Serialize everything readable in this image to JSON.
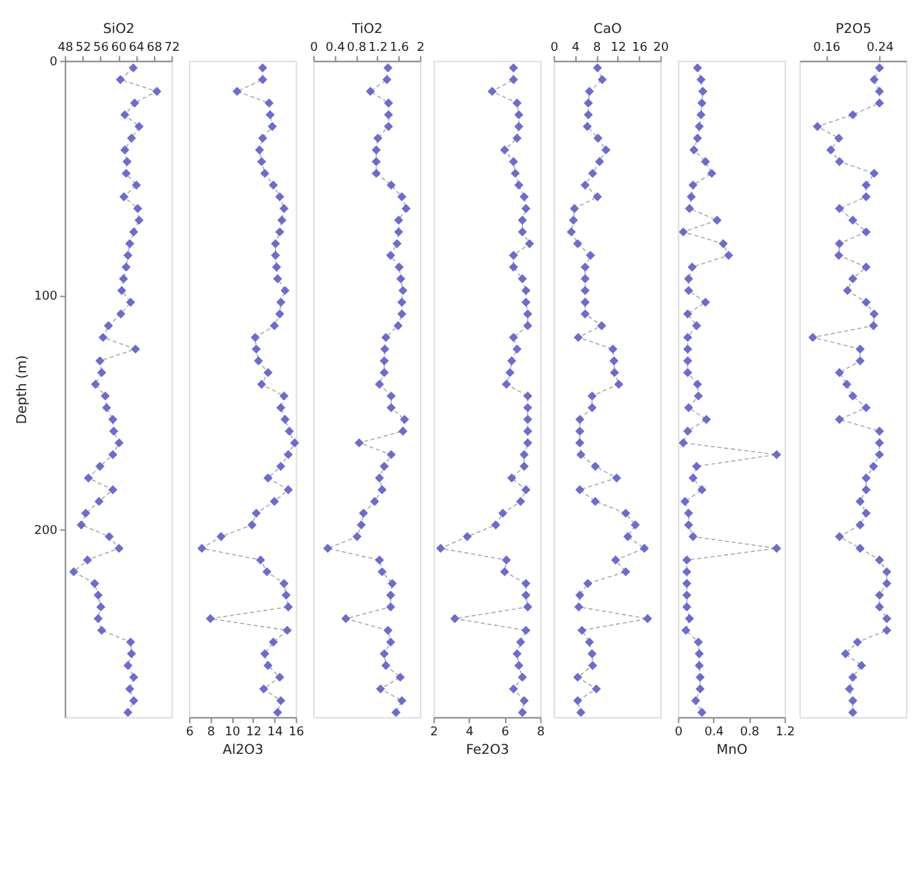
{
  "chart_data": [
    {
      "type": "line",
      "xlabel": "SiO2",
      "ylabel": "Depth (m)",
      "xlim": [
        48,
        72
      ],
      "xticks": [
        48,
        52,
        56,
        60,
        64,
        68,
        72
      ],
      "ylim": [
        280,
        0
      ],
      "yticks": [
        0,
        100,
        200
      ],
      "marker": "diamond",
      "line_style": "dashed",
      "series": [
        {
          "color": "#6b6bd1",
          "x": [
            63.4,
            60.5,
            68.7,
            63.7,
            61.5,
            64.7,
            63.0,
            61.5,
            62.0,
            61.8,
            64.1,
            61.3,
            64.4,
            64.7,
            63.5,
            62.6,
            62.2,
            61.8,
            61.2,
            60.8,
            62.8,
            60.6,
            57.8,
            56.6,
            63.9,
            55.9,
            56.3,
            54.9,
            57.1,
            57.4,
            58.8,
            59.0,
            60.2,
            58.8,
            55.9,
            53.3,
            58.8,
            55.7,
            52.7,
            51.7,
            58.0,
            60.2,
            53.1,
            50.0,
            54.7,
            55.5,
            56.1,
            55.5,
            56.3,
            62.8,
            63.0,
            62.2,
            63.5,
            62.6,
            63.5,
            62.2
          ],
          "values": [
            3,
            8,
            13,
            18,
            23,
            28,
            33,
            38,
            43,
            48,
            53,
            58,
            63,
            68,
            73,
            78,
            83,
            88,
            93,
            98,
            103,
            108,
            113,
            118,
            123,
            128,
            133,
            138,
            143,
            148,
            153,
            158,
            163,
            168,
            173,
            178,
            183,
            188,
            193,
            198,
            203,
            208,
            213,
            218,
            223,
            228,
            233,
            238,
            243,
            248,
            253,
            258,
            263,
            268,
            273,
            278
          ]
        }
      ]
    },
    {
      "type": "line",
      "xlabel": "Al2O3",
      "xlim": [
        6,
        16
      ],
      "xticks": [
        6,
        8,
        10,
        12,
        14,
        16
      ],
      "ylim": [
        280,
        0
      ],
      "tick_labels": "x",
      "marker": "diamond",
      "line_style": "dashed",
      "series": [
        {
          "color": "#6b6bd1",
          "x": [
            12.9,
            12.9,
            10.5,
            13.5,
            13.6,
            13.8,
            12.9,
            12.6,
            12.8,
            13.1,
            13.9,
            14.5,
            14.9,
            14.7,
            14.5,
            14.1,
            14.1,
            14.2,
            14.3,
            15.0,
            14.6,
            14.5,
            14.0,
            12.2,
            12.3,
            12.5,
            13.4,
            12.8,
            14.9,
            14.6,
            15.0,
            15.4,
            15.9,
            15.3,
            14.6,
            13.4,
            15.3,
            14.0,
            12.3,
            11.9,
            9.0,
            7.2,
            12.7,
            13.3,
            14.9,
            15.1,
            15.3,
            8.0,
            15.2,
            13.9,
            13.1,
            13.4,
            14.5,
            13.0,
            14.6,
            14.3
          ],
          "values": [
            3,
            8,
            13,
            18,
            23,
            28,
            33,
            38,
            43,
            48,
            53,
            58,
            63,
            68,
            73,
            78,
            83,
            88,
            93,
            98,
            103,
            108,
            113,
            118,
            123,
            128,
            133,
            138,
            143,
            148,
            153,
            158,
            163,
            168,
            173,
            178,
            183,
            188,
            193,
            198,
            203,
            208,
            213,
            218,
            223,
            228,
            233,
            238,
            243,
            248,
            253,
            258,
            263,
            268,
            273,
            278
          ]
        }
      ]
    },
    {
      "type": "line",
      "xlabel": "TiO2",
      "xlim": [
        0,
        2
      ],
      "xticks": [
        0,
        0.4,
        0.8,
        1.2,
        1.6,
        2
      ],
      "ylim": [
        280,
        0
      ],
      "tick_labels": "x",
      "marker": "diamond",
      "line_style": "dashed",
      "series": [
        {
          "color": "#6b6bd1",
          "x": [
            1.4,
            1.38,
            1.07,
            1.41,
            1.41,
            1.41,
            1.21,
            1.18,
            1.18,
            1.18,
            1.46,
            1.66,
            1.74,
            1.6,
            1.6,
            1.57,
            1.45,
            1.61,
            1.64,
            1.68,
            1.66,
            1.66,
            1.59,
            1.36,
            1.34,
            1.33,
            1.33,
            1.24,
            1.46,
            1.46,
            1.71,
            1.68,
            0.86,
            1.46,
            1.33,
            1.24,
            1.29,
            1.15,
            0.94,
            0.9,
            0.82,
            0.27,
            1.24,
            1.29,
            1.48,
            1.45,
            1.45,
            0.61,
            1.4,
            1.45,
            1.33,
            1.36,
            1.63,
            1.26,
            1.66,
            1.55
          ],
          "values": [
            3,
            8,
            13,
            18,
            23,
            28,
            33,
            38,
            43,
            48,
            53,
            58,
            63,
            68,
            73,
            78,
            83,
            88,
            93,
            98,
            103,
            108,
            113,
            118,
            123,
            128,
            133,
            138,
            143,
            148,
            153,
            158,
            163,
            168,
            173,
            178,
            183,
            188,
            193,
            198,
            203,
            208,
            213,
            218,
            223,
            228,
            233,
            238,
            243,
            248,
            253,
            258,
            263,
            268,
            273,
            278
          ]
        }
      ]
    },
    {
      "type": "line",
      "xlabel": "Fe2O3",
      "xlim": [
        2,
        8
      ],
      "xticks": [
        2,
        4,
        6,
        8
      ],
      "ylim": [
        280,
        0
      ],
      "tick_labels": "x",
      "marker": "diamond",
      "line_style": "dashed",
      "series": [
        {
          "color": "#6b6bd1",
          "x": [
            6.5,
            6.5,
            5.3,
            6.7,
            6.8,
            6.8,
            6.7,
            6.0,
            6.5,
            6.6,
            6.8,
            7.1,
            7.2,
            7.0,
            7.0,
            7.4,
            6.5,
            6.5,
            7.0,
            7.2,
            7.2,
            7.3,
            7.3,
            6.5,
            6.7,
            6.4,
            6.3,
            6.1,
            7.3,
            7.3,
            7.3,
            7.3,
            7.3,
            7.1,
            7.1,
            6.4,
            7.2,
            6.9,
            5.9,
            5.5,
            3.9,
            2.4,
            6.1,
            6.0,
            7.2,
            7.2,
            7.3,
            3.2,
            7.2,
            6.9,
            6.7,
            6.8,
            7.0,
            6.5,
            7.1,
            7.0
          ],
          "values": [
            3,
            8,
            13,
            18,
            23,
            28,
            33,
            38,
            43,
            48,
            53,
            58,
            63,
            68,
            73,
            78,
            83,
            88,
            93,
            98,
            103,
            108,
            113,
            118,
            123,
            128,
            133,
            138,
            143,
            148,
            153,
            158,
            163,
            168,
            173,
            178,
            183,
            188,
            193,
            198,
            203,
            208,
            213,
            218,
            223,
            228,
            233,
            238,
            243,
            248,
            253,
            258,
            263,
            268,
            273,
            278
          ]
        }
      ]
    },
    {
      "type": "line",
      "xlabel": "CaO",
      "xlim": [
        0,
        20
      ],
      "xticks": [
        0,
        4,
        8,
        12,
        16,
        20
      ],
      "ylim": [
        280,
        0
      ],
      "tick_labels": "x",
      "marker": "diamond",
      "line_style": "dashed",
      "series": [
        {
          "color": "#6b6bd1",
          "x": [
            8.2,
            9.1,
            6.7,
            6.5,
            6.5,
            6.3,
            8.3,
            9.8,
            8.6,
            7.3,
            5.9,
            8.2,
            3.9,
            3.7,
            3.3,
            4.5,
            6.9,
            5.9,
            5.9,
            5.9,
            5.9,
            5.9,
            9.0,
            4.6,
            11.1,
            11.3,
            11.4,
            12.2,
            7.2,
            7.2,
            4.9,
            4.9,
            4.9,
            5.1,
            7.8,
            11.8,
            4.9,
            7.8,
            13.5,
            15.3,
            13.9,
            17.0,
            11.6,
            13.5,
            6.4,
            4.9,
            4.7,
            17.6,
            5.3,
            6.7,
            7.2,
            7.3,
            4.5,
            8.0,
            4.5,
            5.1
          ],
          "values": [
            3,
            8,
            13,
            18,
            23,
            28,
            33,
            38,
            43,
            48,
            53,
            58,
            63,
            68,
            73,
            78,
            83,
            88,
            93,
            98,
            103,
            108,
            113,
            118,
            123,
            128,
            133,
            138,
            143,
            148,
            153,
            158,
            163,
            168,
            173,
            178,
            183,
            188,
            193,
            198,
            203,
            208,
            213,
            218,
            223,
            228,
            233,
            238,
            243,
            248,
            253,
            258,
            263,
            268,
            273,
            278
          ]
        }
      ]
    },
    {
      "type": "line",
      "xlabel": "MnO",
      "xlim": [
        0,
        1.2
      ],
      "xticks": [
        0,
        0.4,
        0.8,
        1.2
      ],
      "ylim": [
        280,
        0
      ],
      "tick_labels": "x",
      "marker": "diamond",
      "line_style": "dashed",
      "series": [
        {
          "color": "#6b6bd1",
          "x": [
            0.22,
            0.26,
            0.28,
            0.27,
            0.26,
            0.24,
            0.22,
            0.18,
            0.31,
            0.38,
            0.17,
            0.15,
            0.13,
            0.44,
            0.06,
            0.51,
            0.57,
            0.16,
            0.12,
            0.12,
            0.31,
            0.11,
            0.21,
            0.11,
            0.11,
            0.11,
            0.11,
            0.22,
            0.23,
            0.12,
            0.32,
            0.11,
            0.06,
            1.11,
            0.21,
            0.17,
            0.27,
            0.08,
            0.12,
            0.12,
            0.17,
            1.11,
            0.1,
            0.1,
            0.1,
            0.1,
            0.1,
            0.13,
            0.09,
            0.23,
            0.24,
            0.24,
            0.25,
            0.25,
            0.2,
            0.27
          ],
          "values": [
            3,
            8,
            13,
            18,
            23,
            28,
            33,
            38,
            43,
            48,
            53,
            58,
            63,
            68,
            73,
            78,
            83,
            88,
            93,
            98,
            103,
            108,
            113,
            118,
            123,
            128,
            133,
            138,
            143,
            148,
            153,
            158,
            163,
            168,
            173,
            178,
            183,
            188,
            193,
            198,
            203,
            208,
            213,
            218,
            223,
            228,
            233,
            238,
            243,
            248,
            253,
            258,
            263,
            268,
            273,
            278
          ]
        }
      ]
    },
    {
      "type": "line",
      "xlabel": "P2O5",
      "xlim": [
        0.12,
        0.28
      ],
      "xticks": [
        0.16,
        0.24
      ],
      "ylim": [
        280,
        0
      ],
      "tick_labels": "x",
      "marker": "diamond",
      "line_style": "dashed",
      "series": [
        {
          "color": "#6b6bd1",
          "x": [
            0.24,
            0.232,
            0.24,
            0.24,
            0.2,
            0.147,
            0.179,
            0.167,
            0.18,
            0.232,
            0.22,
            0.22,
            0.18,
            0.2,
            0.22,
            0.18,
            0.179,
            0.22,
            0.2,
            0.192,
            0.22,
            0.232,
            0.231,
            0.14,
            0.211,
            0.211,
            0.18,
            0.191,
            0.2,
            0.22,
            0.18,
            0.24,
            0.24,
            0.24,
            0.231,
            0.22,
            0.22,
            0.211,
            0.22,
            0.211,
            0.18,
            0.211,
            0.24,
            0.251,
            0.251,
            0.24,
            0.24,
            0.251,
            0.251,
            0.207,
            0.189,
            0.213,
            0.2,
            0.195,
            0.2,
            0.2
          ],
          "values": [
            3,
            8,
            13,
            18,
            23,
            28,
            33,
            38,
            43,
            48,
            53,
            58,
            63,
            68,
            73,
            78,
            83,
            88,
            93,
            98,
            103,
            108,
            113,
            118,
            123,
            128,
            133,
            138,
            143,
            148,
            153,
            158,
            163,
            168,
            173,
            178,
            183,
            188,
            193,
            198,
            203,
            208,
            213,
            218,
            223,
            228,
            233,
            238,
            243,
            248,
            253,
            258,
            263,
            268,
            273,
            278
          ]
        }
      ]
    }
  ]
}
